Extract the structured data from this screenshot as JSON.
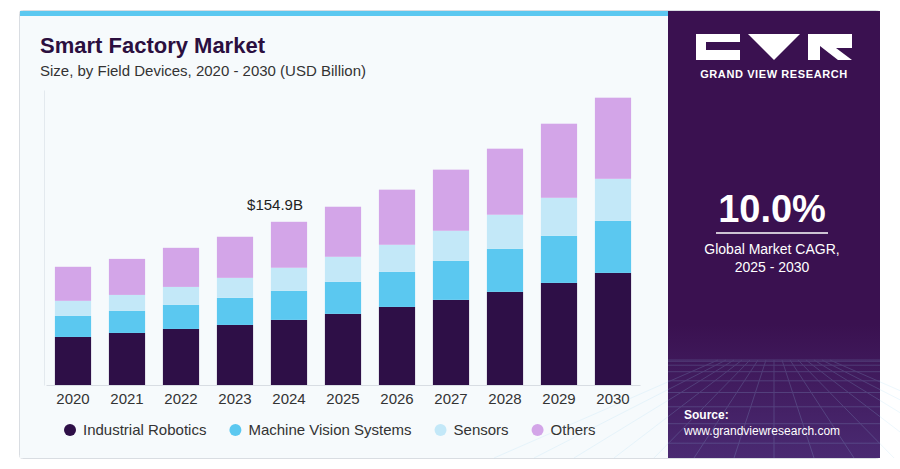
{
  "chart_data": {
    "type": "bar",
    "stacked": true,
    "title": "Smart Factory Market",
    "subtitle": "Size, by Field Devices, 2020 - 2030 (USD Billion)",
    "categories": [
      "2020",
      "2021",
      "2022",
      "2023",
      "2024",
      "2025",
      "2026",
      "2027",
      "2028",
      "2029",
      "2030"
    ],
    "series": [
      {
        "name": "Industrial Robotics",
        "color": "#2e0f47",
        "values": [
          45.6,
          49.4,
          53.2,
          57.0,
          61.8,
          67.5,
          74.1,
          80.8,
          88.4,
          96.9,
          106.4
        ]
      },
      {
        "name": "Machine Vision Systems",
        "color": "#5bc8f0",
        "values": [
          20.0,
          20.9,
          22.8,
          25.7,
          27.6,
          30.4,
          33.3,
          37.1,
          40.9,
          44.7,
          49.4
        ]
      },
      {
        "name": "Sensors",
        "color": "#c3e8f8",
        "values": [
          14.3,
          15.2,
          17.1,
          19.0,
          21.9,
          23.8,
          25.7,
          28.5,
          32.3,
          36.1,
          39.9
        ]
      },
      {
        "name": "Others",
        "color": "#d3a5e8",
        "values": [
          32.3,
          34.2,
          37.1,
          39.0,
          43.6,
          47.5,
          52.3,
          58.0,
          62.7,
          70.3,
          77.0
        ]
      }
    ],
    "ylim": [
      0,
      280
    ],
    "tick_labels": "x",
    "grid": false,
    "legend": "bottom",
    "annotations": [
      {
        "x": "2024",
        "text": "$154.9B"
      }
    ]
  },
  "side_panel": {
    "brand": "GRAND VIEW RESEARCH",
    "cagr": "10.0%",
    "cagr_label": [
      "Global Market CAGR,",
      "2025 - 2030"
    ],
    "source_title": "Source:",
    "source_url": "www.grandviewresearch.com"
  }
}
